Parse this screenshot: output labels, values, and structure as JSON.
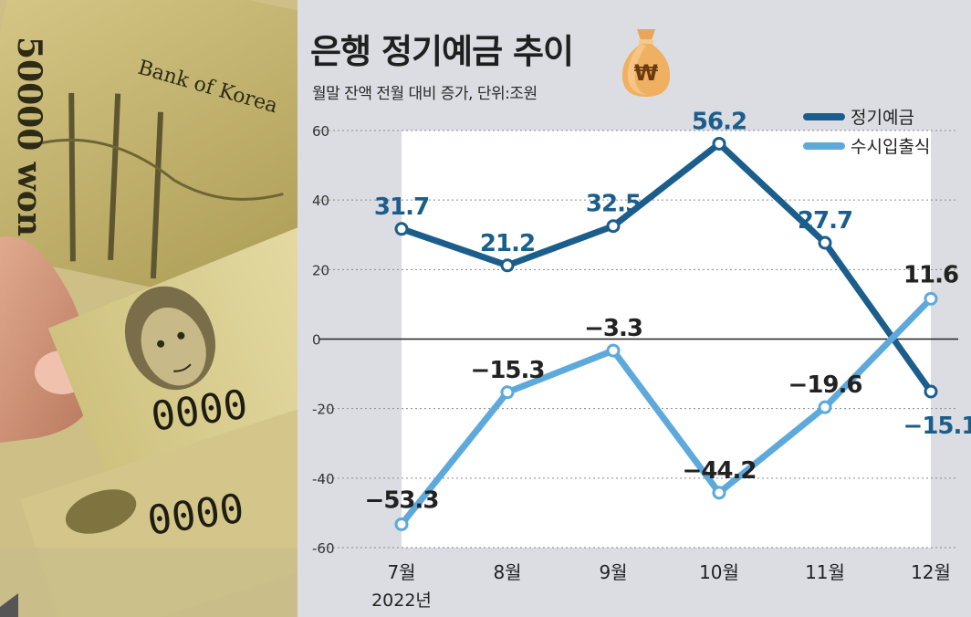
{
  "chart_data": {
    "type": "line",
    "title": "은행 정기예금 추이",
    "subtitle": "월말 잔액 전월 대비 증가, 단위:조원",
    "categories": [
      "7월",
      "8월",
      "9월",
      "10월",
      "11월",
      "12월"
    ],
    "year_label": "2022년",
    "ylim": [
      -60,
      60
    ],
    "yticks": [
      60,
      40,
      20,
      0,
      -20,
      -40,
      -60
    ],
    "ytick_labels": [
      "60",
      "40",
      "20",
      "0",
      "-20",
      "-40",
      "-60"
    ],
    "series": [
      {
        "name": "정기예금",
        "color": "#1b5e8c",
        "values": [
          31.7,
          21.2,
          32.5,
          56.2,
          27.7,
          -15.1
        ],
        "labels": [
          "31.7",
          "21.2",
          "32.5",
          "56.2",
          "27.7",
          "−15.1"
        ]
      },
      {
        "name": "수시입출식",
        "color": "#5ea9dc",
        "values": [
          -53.3,
          -15.3,
          -3.3,
          -44.2,
          -19.6,
          11.6
        ],
        "labels": [
          "−53.3",
          "−15.3",
          "−3.3",
          "−44.2",
          "−19.6",
          "11.6"
        ]
      }
    ]
  },
  "photo": {
    "banknote_text": "Bank of Korea",
    "denomination": "50000 won",
    "serial_fragment": "0000"
  },
  "icon": {
    "money_bag": "money-bag-icon",
    "symbol": "₩"
  }
}
